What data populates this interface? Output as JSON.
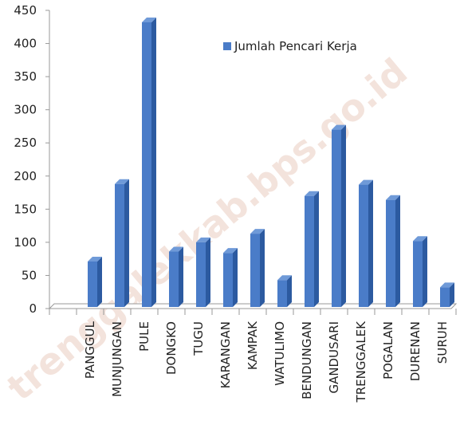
{
  "chart_data": {
    "type": "bar3d",
    "categories": [
      null,
      "PANGGUL",
      "MUNJUNGAN",
      "PULE",
      "DONGKO",
      "TUGU",
      "KARANGAN",
      "KAMPAK",
      "WATULIMO",
      "BENDUNGAN",
      "GANDUSARI",
      "TRENGGALEK",
      "POGALAN",
      "DURENAN",
      "SURUH"
    ],
    "series": [
      {
        "name": "Jumlah Pencari Kerja",
        "color": "#4a7cc8",
        "values": [
          null,
          71,
          188,
          432,
          86,
          100,
          84,
          113,
          43,
          170,
          270,
          187,
          164,
          102,
          32
        ]
      }
    ],
    "ylim": [
      0,
      450
    ],
    "yticks": [
      0,
      50,
      100,
      150,
      200,
      250,
      300,
      350,
      400,
      450
    ],
    "legend": "top-right",
    "watermark": "trenggalekkab.bps.go.id"
  }
}
